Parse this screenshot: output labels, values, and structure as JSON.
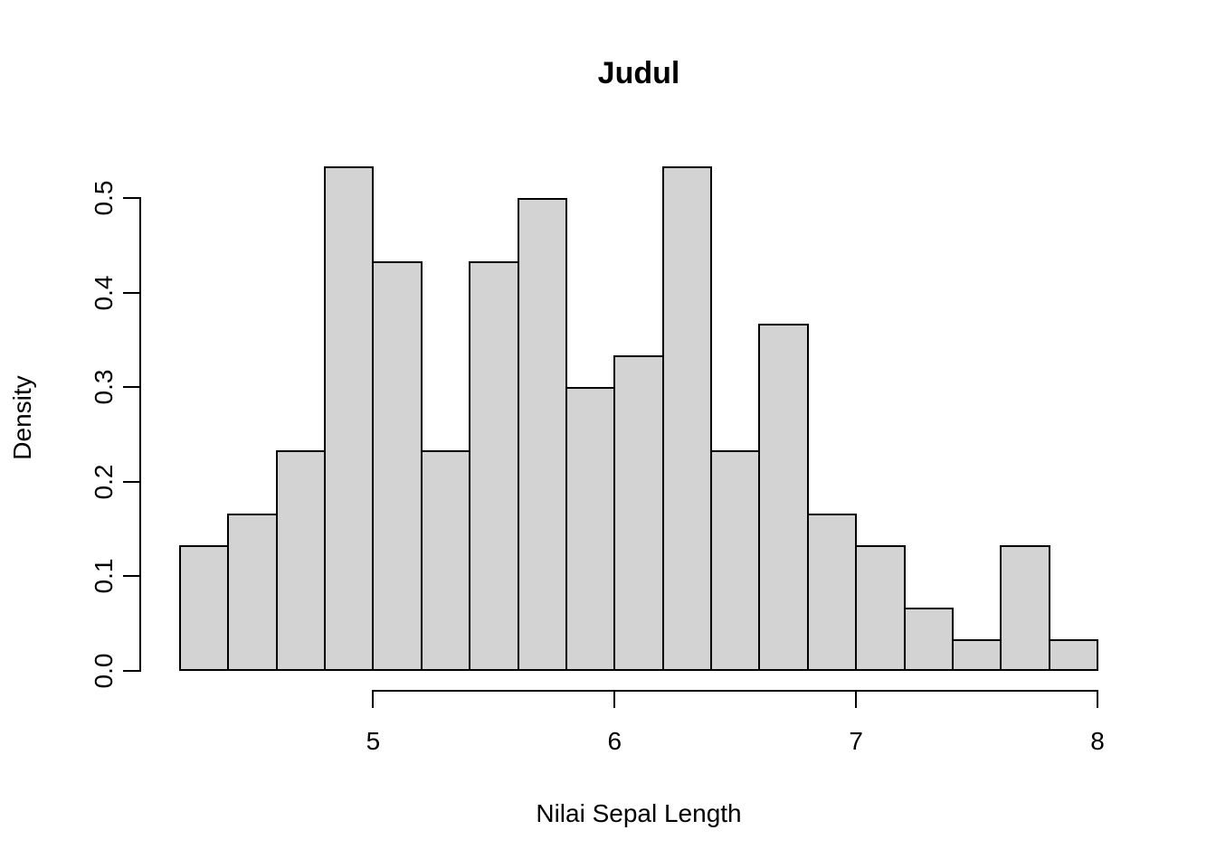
{
  "title": "Judul",
  "chart_data": {
    "type": "bar",
    "subtype": "histogram",
    "title": "Judul",
    "xlabel": "Nilai Sepal Length",
    "ylabel": "Density",
    "bin_edges": [
      4.2,
      4.4,
      4.6,
      4.8,
      5.0,
      5.2,
      5.4,
      5.6,
      5.8,
      6.0,
      6.2,
      6.4,
      6.6,
      6.8,
      7.0,
      7.2,
      7.4,
      7.6,
      7.8,
      8.0
    ],
    "densities": [
      0.1333,
      0.1667,
      0.2333,
      0.5333,
      0.4333,
      0.2333,
      0.4333,
      0.5,
      0.3,
      0.3333,
      0.5333,
      0.2333,
      0.3667,
      0.1667,
      0.1333,
      0.0667,
      0.0333,
      0.1333,
      0.0333
    ],
    "x_ticks": [
      5,
      6,
      7,
      8
    ],
    "x_tick_labels": [
      "5",
      "6",
      "7",
      "8"
    ],
    "y_ticks": [
      0.0,
      0.1,
      0.2,
      0.3,
      0.4,
      0.5
    ],
    "y_tick_labels": [
      "0.0",
      "0.1",
      "0.2",
      "0.3",
      "0.4",
      "0.5"
    ],
    "xlim": [
      4.2,
      8.0
    ],
    "ylim": [
      0,
      0.5333
    ],
    "grid": false,
    "legend": false,
    "bar_fill": "#d3d3d3",
    "bar_border": "#000000",
    "axis_color": "#000000",
    "background": "#ffffff"
  }
}
